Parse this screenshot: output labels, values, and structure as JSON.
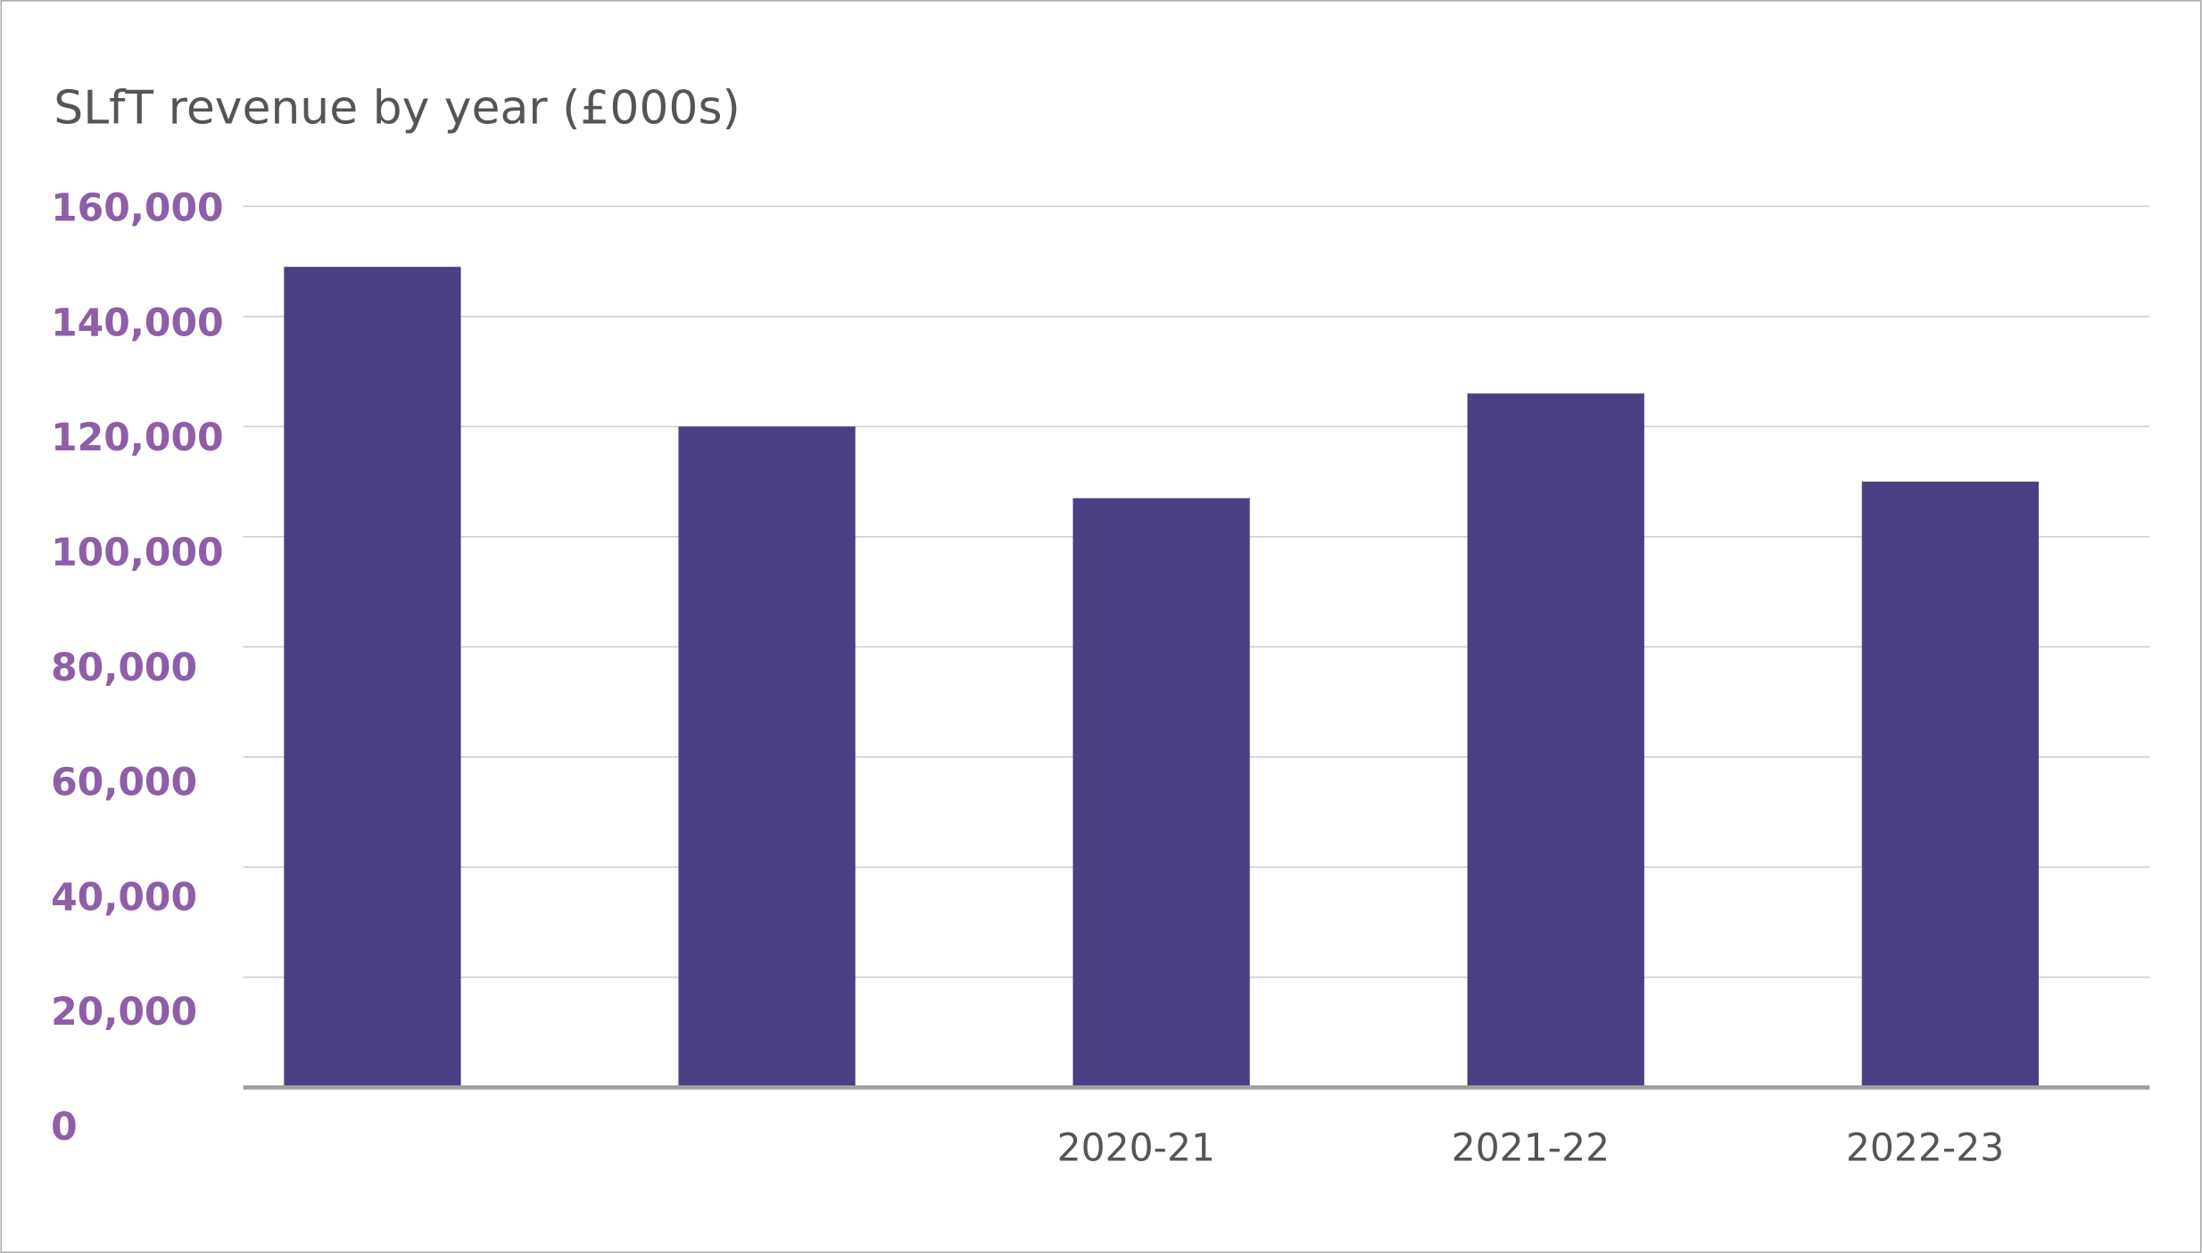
{
  "chart_data": {
    "type": "bar",
    "title": "SLfT revenue by year (£000s)",
    "categories": [
      null,
      null,
      "2020-21",
      "2021-22",
      "2022-23"
    ],
    "values": [
      149000,
      120000,
      107000,
      126000,
      110000
    ],
    "color": "#4b4083",
    "ylim": [
      0,
      160000
    ],
    "yticks": [
      0,
      {
        "value": 20000,
        "label": "20,000"
      },
      {
        "value": 40000,
        "label": "40,000"
      },
      {
        "value": 60000,
        "label": "60,000"
      },
      {
        "value": 80000,
        "label": "80,000"
      },
      {
        "value": 100000,
        "label": "100,000"
      },
      {
        "value": 120000,
        "label": "120,000"
      },
      {
        "value": 140000,
        "label": "140,000"
      },
      {
        "value": 160000,
        "label": "160,000"
      }
    ],
    "grid": true
  }
}
